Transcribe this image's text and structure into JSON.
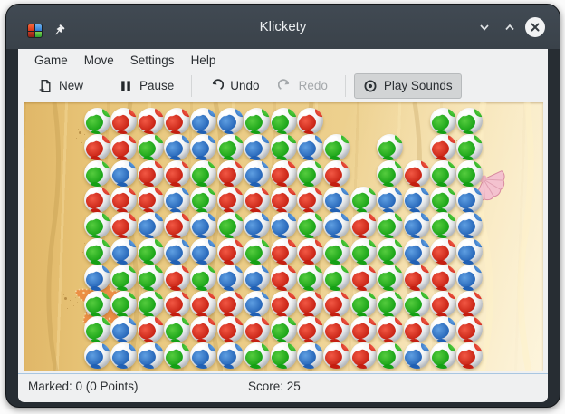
{
  "window": {
    "title": "Klickety",
    "titlebar_buttons": [
      {
        "name": "minimize"
      },
      {
        "name": "maximize"
      },
      {
        "name": "close"
      }
    ]
  },
  "menubar": {
    "items": [
      {
        "label": "Game"
      },
      {
        "label": "Move"
      },
      {
        "label": "Settings"
      },
      {
        "label": "Help"
      }
    ]
  },
  "toolbar": {
    "buttons": [
      {
        "label": "New",
        "icon": "document-new-icon",
        "enabled": true,
        "toggled": false
      },
      {
        "label": "Pause",
        "icon": "pause-icon",
        "enabled": true,
        "toggled": false
      },
      {
        "label": "Undo",
        "icon": "undo-icon",
        "enabled": true,
        "toggled": false
      },
      {
        "label": "Redo",
        "icon": "redo-icon",
        "enabled": false,
        "toggled": false
      },
      {
        "label": "Play Sounds",
        "icon": "play-sounds-icon",
        "enabled": true,
        "toggled": true
      }
    ]
  },
  "board": {
    "columns": 15,
    "rows": 10,
    "legend": {
      "G": "green ball",
      "R": "red ball",
      "B": "blue ball",
      ".": "empty"
    },
    "grid": [
      "GRRRBBGGR....GG",
      "RRGBBGBGBG.G.RG",
      "GBRRGRBRGR.GRGG",
      "RRRBGRRRRBGBBGB",
      "GRBRBGBBGBRGBGB",
      "GBGBBRGRRGGGBRB",
      "BGGRGBBRGGRGRRB",
      "GGGRRRBRRRGGGRR",
      "GBRGRRRGRRRRRBR",
      "BBBGBBGGBRRGBGR"
    ],
    "colors": {
      "red": "#c41e10",
      "green": "#14a014",
      "blue": "#2060b4",
      "sand": "#eacb84",
      "titlebar": "#3c444c"
    },
    "decorations": [
      {
        "name": "starfish"
      },
      {
        "name": "seashell"
      }
    ]
  },
  "statusbar": {
    "marked": "Marked: 0 (0 Points)",
    "score": "Score: 25"
  }
}
